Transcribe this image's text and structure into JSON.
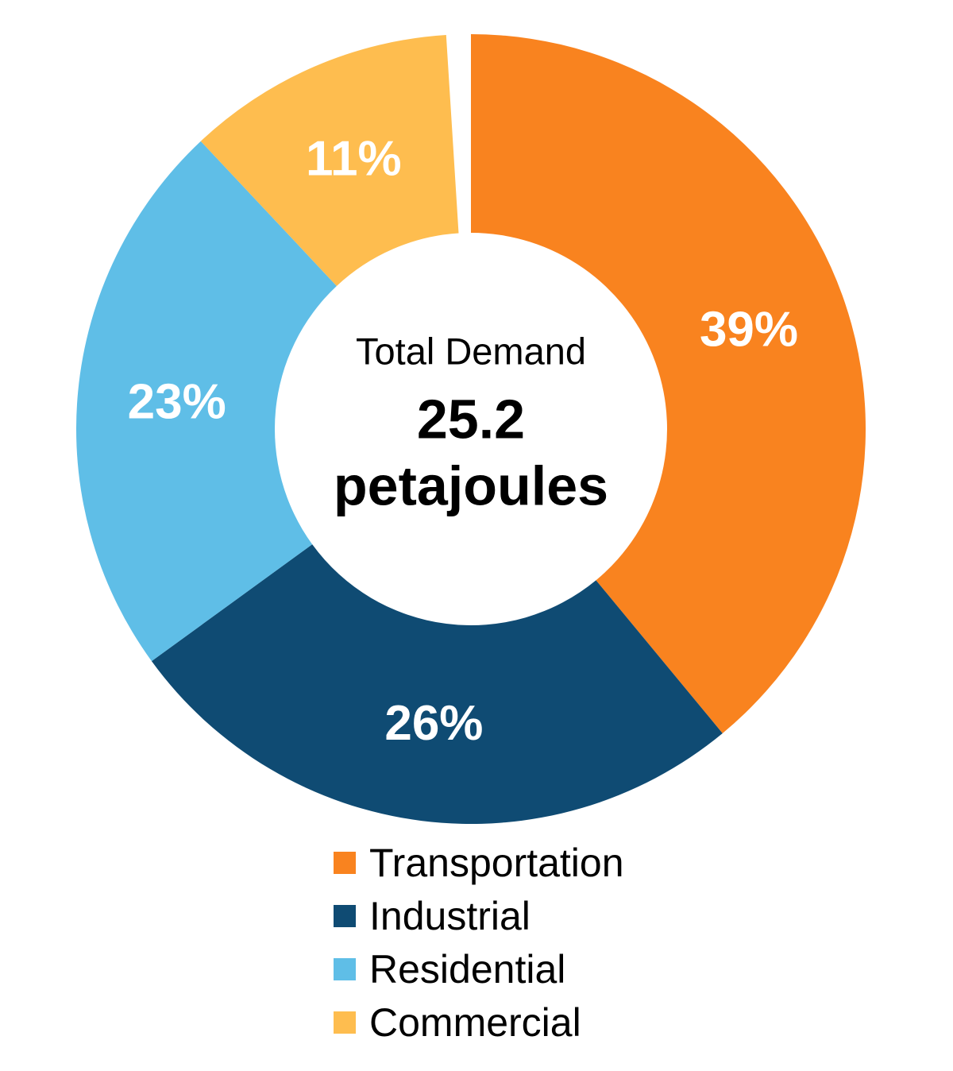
{
  "page": {
    "background_color": "#FFFFFF"
  },
  "chart_data": {
    "type": "pie",
    "subtype": "donut",
    "direction": "clockwise",
    "start_angle_deg": 0,
    "legend_position": "bottom-left",
    "units": "percent",
    "slice_label_color": "#FFFFFF",
    "categories": [
      "Transportation",
      "Industrial",
      "Residential",
      "Commercial"
    ],
    "series": [
      {
        "name": "Transportation",
        "value": 39,
        "label": "39%",
        "color": "#F9831F"
      },
      {
        "name": "Industrial",
        "value": 26,
        "label": "26%",
        "color": "#0F4B73"
      },
      {
        "name": "Residential",
        "value": 23,
        "label": "23%",
        "color": "#5FBEE7"
      },
      {
        "name": "Commercial",
        "value": 11,
        "label": "11%",
        "color": "#FEBD4F"
      }
    ],
    "center_label": {
      "title": "Total Demand",
      "value": "25.2",
      "unit": "petajoules"
    }
  }
}
